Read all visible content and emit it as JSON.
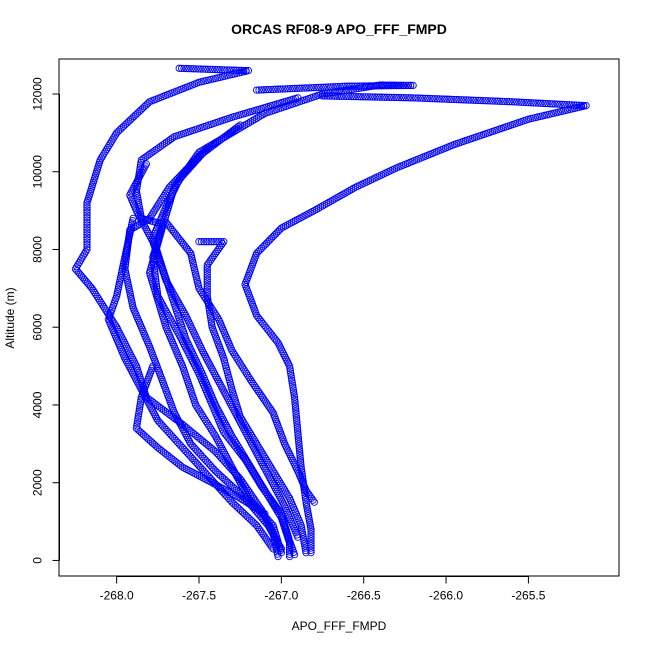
{
  "chart_data": {
    "type": "scatter",
    "title": "ORCAS RF08-9 APO_FFF_FMPD",
    "xlabel": "APO_FFF_FMPD",
    "ylabel": "Altitude (m)",
    "xlim": [
      -268.35,
      -264.95
    ],
    "ylim": [
      -400,
      12900
    ],
    "xticks": [
      -268.0,
      -267.5,
      -267.0,
      -266.5,
      -266.0,
      -265.5
    ],
    "xtick_labels": [
      "-268.0",
      "-267.5",
      "-267.0",
      "-266.5",
      "-266.0",
      "-265.5"
    ],
    "yticks": [
      0,
      2000,
      4000,
      6000,
      8000,
      10000,
      12000
    ],
    "ytick_labels": [
      "0",
      "2000",
      "4000",
      "6000",
      "8000",
      "10000",
      "12000"
    ],
    "grid": false,
    "legend": "none",
    "marker": "open-circle",
    "color": "#0000ff",
    "series": [
      {
        "points": [
          [
            -267.62,
            12660
          ],
          [
            -267.2,
            12600
          ],
          [
            -267.5,
            12300
          ],
          [
            -267.8,
            11800
          ],
          [
            -268.0,
            11000
          ],
          [
            -268.1,
            10300
          ],
          [
            -268.18,
            9200
          ],
          [
            -268.18,
            8000
          ],
          [
            -268.25,
            7500
          ],
          [
            -268.15,
            7000
          ],
          [
            -268.0,
            6000
          ],
          [
            -267.88,
            5000
          ],
          [
            -267.82,
            4200
          ],
          [
            -267.6,
            3500
          ],
          [
            -267.4,
            2800
          ],
          [
            -267.25,
            2100
          ],
          [
            -267.12,
            1300
          ],
          [
            -267.05,
            700
          ],
          [
            -267.02,
            100
          ]
        ]
      },
      {
        "points": [
          [
            -267.15,
            12100
          ],
          [
            -266.6,
            12200
          ],
          [
            -266.2,
            12220
          ],
          [
            -266.4,
            12230
          ],
          [
            -266.75,
            12000
          ],
          [
            -267.1,
            11500
          ],
          [
            -267.5,
            10500
          ],
          [
            -267.65,
            9600
          ],
          [
            -267.72,
            8600
          ],
          [
            -267.8,
            7400
          ],
          [
            -267.7,
            6000
          ],
          [
            -267.6,
            5000
          ],
          [
            -267.52,
            4000
          ],
          [
            -267.4,
            3200
          ],
          [
            -267.3,
            2400
          ],
          [
            -267.2,
            1600
          ],
          [
            -267.05,
            900
          ],
          [
            -267.0,
            200
          ]
        ]
      },
      {
        "points": [
          [
            -266.75,
            11950
          ],
          [
            -266.2,
            11900
          ],
          [
            -265.6,
            11800
          ],
          [
            -265.15,
            11700
          ],
          [
            -265.5,
            11350
          ],
          [
            -265.95,
            10700
          ],
          [
            -266.3,
            10100
          ],
          [
            -266.55,
            9600
          ],
          [
            -266.8,
            9000
          ],
          [
            -267.0,
            8550
          ],
          [
            -267.15,
            7900
          ],
          [
            -267.22,
            7100
          ],
          [
            -267.15,
            6300
          ],
          [
            -267.02,
            5600
          ],
          [
            -266.95,
            5000
          ],
          [
            -266.92,
            4200
          ],
          [
            -266.9,
            3300
          ],
          [
            -266.88,
            2400
          ],
          [
            -266.85,
            1500
          ],
          [
            -266.82,
            800
          ],
          [
            -266.82,
            200
          ]
        ]
      },
      {
        "points": [
          [
            -266.9,
            11900
          ],
          [
            -267.3,
            11400
          ],
          [
            -267.65,
            10900
          ],
          [
            -267.85,
            10300
          ],
          [
            -267.88,
            9500
          ],
          [
            -267.85,
            8800
          ],
          [
            -267.72,
            8650
          ],
          [
            -267.78,
            7800
          ],
          [
            -267.75,
            6800
          ],
          [
            -267.62,
            5800
          ],
          [
            -267.5,
            4800
          ],
          [
            -267.42,
            4000
          ],
          [
            -267.35,
            3300
          ],
          [
            -267.22,
            2600
          ],
          [
            -267.12,
            1900
          ],
          [
            -267.0,
            1200
          ],
          [
            -266.95,
            500
          ],
          [
            -266.92,
            150
          ]
        ]
      },
      {
        "points": [
          [
            -267.25,
            11200
          ],
          [
            -267.5,
            10400
          ],
          [
            -267.68,
            9600
          ],
          [
            -267.8,
            8800
          ],
          [
            -267.92,
            8500
          ],
          [
            -267.95,
            7500
          ],
          [
            -267.9,
            6500
          ],
          [
            -267.8,
            5500
          ],
          [
            -267.72,
            4600
          ],
          [
            -267.65,
            3800
          ],
          [
            -267.55,
            3000
          ],
          [
            -267.4,
            2300
          ],
          [
            -267.22,
            1600
          ],
          [
            -267.08,
            900
          ],
          [
            -267.0,
            300
          ]
        ]
      },
      {
        "points": [
          [
            -267.45,
            10600
          ],
          [
            -267.62,
            9800
          ],
          [
            -267.7,
            9100
          ],
          [
            -267.78,
            8300
          ],
          [
            -267.72,
            7500
          ],
          [
            -267.65,
            6600
          ],
          [
            -267.58,
            5700
          ],
          [
            -267.48,
            4800
          ],
          [
            -267.4,
            4000
          ],
          [
            -267.3,
            3200
          ],
          [
            -267.2,
            2500
          ],
          [
            -267.1,
            1800
          ],
          [
            -267.0,
            1100
          ],
          [
            -266.95,
            450
          ],
          [
            -266.95,
            100
          ]
        ]
      },
      {
        "points": [
          [
            -267.5,
            8200
          ],
          [
            -267.35,
            8200
          ],
          [
            -267.45,
            7600
          ],
          [
            -267.45,
            6800
          ],
          [
            -267.42,
            6000
          ],
          [
            -267.35,
            5200
          ],
          [
            -267.3,
            4400
          ],
          [
            -267.25,
            3700
          ],
          [
            -267.15,
            3000
          ],
          [
            -267.05,
            2300
          ],
          [
            -266.95,
            1600
          ],
          [
            -266.88,
            900
          ],
          [
            -266.85,
            200
          ]
        ]
      },
      {
        "points": [
          [
            -267.7,
            8700
          ],
          [
            -267.55,
            7900
          ],
          [
            -267.5,
            7000
          ],
          [
            -267.38,
            6200
          ],
          [
            -267.3,
            5400
          ],
          [
            -267.18,
            4600
          ],
          [
            -267.05,
            3800
          ],
          [
            -266.98,
            3000
          ],
          [
            -266.9,
            2300
          ],
          [
            -266.85,
            1800
          ],
          [
            -266.8,
            1500
          ]
        ]
      },
      {
        "points": [
          [
            -267.9,
            8800
          ],
          [
            -267.95,
            7800
          ],
          [
            -268.0,
            6800
          ],
          [
            -268.05,
            6200
          ],
          [
            -267.95,
            5200
          ],
          [
            -267.85,
            4400
          ],
          [
            -267.75,
            3600
          ],
          [
            -267.6,
            2900
          ],
          [
            -267.45,
            2200
          ],
          [
            -267.3,
            1500
          ],
          [
            -267.15,
            900
          ],
          [
            -267.05,
            300
          ]
        ]
      },
      {
        "points": [
          [
            -267.78,
            5000
          ],
          [
            -267.85,
            4200
          ],
          [
            -267.88,
            3400
          ],
          [
            -267.75,
            2900
          ],
          [
            -267.6,
            2400
          ],
          [
            -267.42,
            2000
          ],
          [
            -267.25,
            1600
          ],
          [
            -267.1,
            1200
          ]
        ]
      },
      {
        "points": [
          [
            -267.82,
            10200
          ],
          [
            -267.92,
            9400
          ],
          [
            -267.88,
            9000
          ],
          [
            -267.78,
            8200
          ],
          [
            -267.7,
            7200
          ],
          [
            -267.58,
            6300
          ],
          [
            -267.48,
            5400
          ],
          [
            -267.38,
            4600
          ],
          [
            -267.28,
            3800
          ],
          [
            -267.18,
            3000
          ],
          [
            -267.08,
            2200
          ],
          [
            -266.98,
            1400
          ],
          [
            -266.9,
            600
          ]
        ]
      }
    ]
  }
}
